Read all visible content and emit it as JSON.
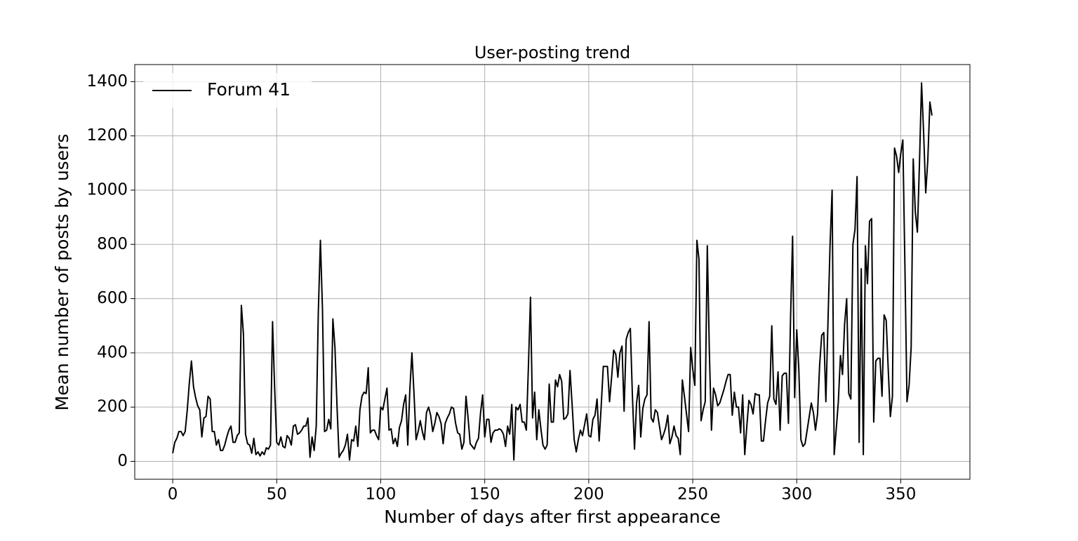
{
  "chart_data": {
    "type": "line",
    "title": "User-posting trend",
    "x_label": "Number of days after first appearance",
    "y_label": "Mean number of posts by users",
    "x": [
      0,
      1,
      2,
      3,
      4,
      5,
      6,
      7,
      8,
      9,
      10,
      11,
      12,
      13,
      14,
      15,
      16,
      17,
      18,
      19,
      20,
      21,
      22,
      23,
      24,
      25,
      26,
      27,
      28,
      29,
      30,
      31,
      32,
      33,
      34,
      35,
      36,
      37,
      38,
      39,
      40,
      41,
      42,
      43,
      44,
      45,
      46,
      47,
      48,
      49,
      50,
      51,
      52,
      53,
      54,
      55,
      56,
      57,
      58,
      59,
      60,
      61,
      62,
      63,
      64,
      65,
      66,
      67,
      68,
      69,
      70,
      71,
      72,
      73,
      74,
      75,
      76,
      77,
      78,
      79,
      80,
      81,
      82,
      83,
      84,
      85,
      86,
      87,
      88,
      89,
      90,
      91,
      92,
      93,
      94,
      95,
      96,
      97,
      98,
      99,
      100,
      101,
      102,
      103,
      104,
      105,
      106,
      107,
      108,
      109,
      110,
      111,
      112,
      113,
      114,
      115,
      116,
      117,
      118,
      119,
      120,
      121,
      122,
      123,
      124,
      125,
      126,
      127,
      128,
      129,
      130,
      131,
      132,
      133,
      134,
      135,
      136,
      137,
      138,
      139,
      140,
      141,
      142,
      143,
      144,
      145,
      146,
      147,
      148,
      149,
      150,
      151,
      152,
      153,
      154,
      155,
      156,
      157,
      158,
      159,
      160,
      161,
      162,
      163,
      164,
      165,
      166,
      167,
      168,
      169,
      170,
      171,
      172,
      173,
      174,
      175,
      176,
      177,
      178,
      179,
      180,
      181,
      182,
      183,
      184,
      185,
      186,
      187,
      188,
      189,
      190,
      191,
      192,
      193,
      194,
      195,
      196,
      197,
      198,
      199,
      200,
      201,
      202,
      203,
      204,
      205,
      206,
      207,
      208,
      209,
      210,
      211,
      212,
      213,
      214,
      215,
      216,
      217,
      218,
      219,
      220,
      221,
      222,
      223,
      224,
      225,
      226,
      227,
      228,
      229,
      230,
      231,
      232,
      233,
      234,
      235,
      236,
      237,
      238,
      239,
      240,
      241,
      242,
      243,
      244,
      245,
      246,
      247,
      248,
      249,
      250,
      251,
      252,
      253,
      254,
      255,
      256,
      257,
      258,
      259,
      260,
      261,
      262,
      263,
      264,
      265,
      266,
      267,
      268,
      269,
      270,
      271,
      272,
      273,
      274,
      275,
      276,
      277,
      278,
      279,
      280,
      281,
      282,
      283,
      284,
      285,
      286,
      287,
      288,
      289,
      290,
      291,
      292,
      293,
      294,
      295,
      296,
      297,
      298,
      299,
      300,
      301,
      302,
      303,
      304,
      305,
      306,
      307,
      308,
      309,
      310,
      311,
      312,
      313,
      314,
      315,
      316,
      317,
      318,
      319,
      320,
      321,
      322,
      323,
      324,
      325,
      326,
      327,
      328,
      329,
      330,
      331,
      332,
      333,
      334,
      335,
      336,
      337,
      338,
      339,
      340,
      341,
      342,
      343,
      344,
      345,
      346,
      347,
      348,
      349,
      350,
      351,
      352,
      353,
      354,
      355,
      356,
      357,
      358,
      359,
      360,
      361,
      362,
      363,
      364,
      365
    ],
    "series": [
      {
        "name": "Forum 41",
        "color": "#000000",
        "values": [
          30,
          70,
          85,
          110,
          110,
          95,
          110,
          190,
          290,
          370,
          275,
          235,
          205,
          190,
          90,
          160,
          165,
          240,
          230,
          110,
          110,
          60,
          80,
          40,
          40,
          60,
          90,
          115,
          130,
          70,
          70,
          95,
          105,
          575,
          470,
          100,
          65,
          60,
          30,
          85,
          25,
          35,
          20,
          35,
          25,
          50,
          45,
          60,
          515,
          270,
          70,
          60,
          90,
          55,
          50,
          95,
          85,
          60,
          130,
          135,
          100,
          105,
          115,
          130,
          130,
          160,
          15,
          90,
          40,
          130,
          550,
          815,
          560,
          110,
          115,
          155,
          120,
          525,
          420,
          200,
          15,
          30,
          40,
          60,
          100,
          5,
          80,
          75,
          130,
          55,
          190,
          240,
          255,
          250,
          345,
          105,
          115,
          115,
          95,
          80,
          200,
          190,
          230,
          270,
          115,
          120,
          65,
          85,
          55,
          125,
          150,
          210,
          245,
          60,
          265,
          400,
          250,
          80,
          110,
          150,
          110,
          80,
          180,
          200,
          170,
          110,
          140,
          180,
          165,
          140,
          65,
          140,
          160,
          175,
          200,
          195,
          140,
          105,
          100,
          45,
          70,
          240,
          160,
          65,
          55,
          45,
          70,
          85,
          180,
          245,
          90,
          155,
          155,
          70,
          105,
          115,
          115,
          120,
          115,
          100,
          55,
          130,
          100,
          210,
          5,
          200,
          190,
          210,
          145,
          145,
          115,
          350,
          605,
          160,
          255,
          80,
          190,
          120,
          60,
          45,
          60,
          285,
          145,
          145,
          300,
          275,
          320,
          295,
          155,
          160,
          175,
          335,
          210,
          80,
          35,
          80,
          115,
          95,
          135,
          175,
          95,
          90,
          155,
          170,
          230,
          75,
          205,
          350,
          350,
          350,
          220,
          310,
          410,
          395,
          310,
          400,
          425,
          185,
          450,
          475,
          490,
          240,
          45,
          215,
          280,
          90,
          195,
          230,
          245,
          515,
          160,
          145,
          190,
          180,
          130,
          80,
          100,
          125,
          170,
          65,
          90,
          130,
          95,
          85,
          25,
          300,
          240,
          175,
          110,
          420,
          340,
          280,
          815,
          745,
          150,
          190,
          220,
          795,
          400,
          115,
          270,
          245,
          205,
          215,
          240,
          265,
          295,
          320,
          320,
          170,
          255,
          200,
          200,
          105,
          245,
          25,
          130,
          225,
          210,
          175,
          250,
          245,
          245,
          75,
          75,
          150,
          215,
          240,
          500,
          230,
          210,
          330,
          115,
          315,
          325,
          325,
          140,
          520,
          830,
          235,
          485,
          340,
          80,
          55,
          65,
          115,
          165,
          215,
          180,
          115,
          175,
          355,
          465,
          475,
          220,
          510,
          795,
          1000,
          25,
          120,
          220,
          390,
          320,
          505,
          600,
          250,
          230,
          800,
          855,
          1050,
          70,
          710,
          25,
          795,
          655,
          885,
          895,
          145,
          370,
          380,
          380,
          240,
          540,
          520,
          335,
          165,
          240,
          1155,
          1125,
          1065,
          1135,
          1185,
          720,
          220,
          280,
          420,
          1115,
          920,
          845,
          1100,
          1395,
          1210,
          990,
          1110,
          1325,
          1275
        ]
      }
    ],
    "xlim": [
      -18.25,
      383.25
    ],
    "xticks": [
      0,
      50,
      100,
      150,
      200,
      250,
      300,
      350
    ],
    "ylim": [
      -66,
      1463
    ],
    "yticks": [
      0,
      200,
      400,
      600,
      800,
      1000,
      1200,
      1400
    ],
    "grid": true,
    "legend": "upper left"
  }
}
